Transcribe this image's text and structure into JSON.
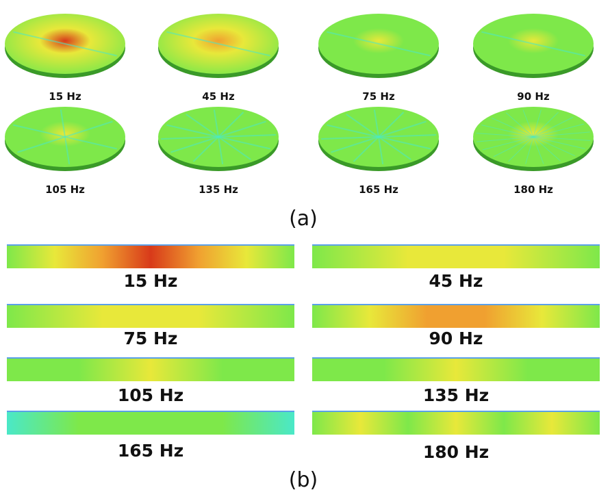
{
  "panel_a": {
    "label": "(a)",
    "items": [
      {
        "label": "15 Hz",
        "field": "hot"
      },
      {
        "label": "45 Hz",
        "field": "warm"
      },
      {
        "label": "75 Hz",
        "field": "mild"
      },
      {
        "label": "90 Hz",
        "field": "mild"
      },
      {
        "label": "105 Hz",
        "field": "cool"
      },
      {
        "label": "135 Hz",
        "field": "cyan"
      },
      {
        "label": "165 Hz",
        "field": "cyan"
      },
      {
        "label": "180 Hz",
        "field": "rings"
      }
    ]
  },
  "panel_b": {
    "label": "(b)",
    "items": [
      {
        "label": "15 Hz",
        "field": "hot"
      },
      {
        "label": "45 Hz",
        "field": "mild"
      },
      {
        "label": "75 Hz",
        "field": "mild"
      },
      {
        "label": "90 Hz",
        "field": "warm"
      },
      {
        "label": "105 Hz",
        "field": "cool"
      },
      {
        "label": "135 Hz",
        "field": "cool"
      },
      {
        "label": "165 Hz",
        "field": "cyan"
      },
      {
        "label": "180 Hz",
        "field": "rings"
      }
    ]
  },
  "colors": {
    "green": "#7ee84a",
    "yellow": "#e8e83a",
    "orange": "#f0a030",
    "red": "#d83a1a",
    "cyan": "#4ae8c8",
    "rim": "#3a9a28"
  }
}
